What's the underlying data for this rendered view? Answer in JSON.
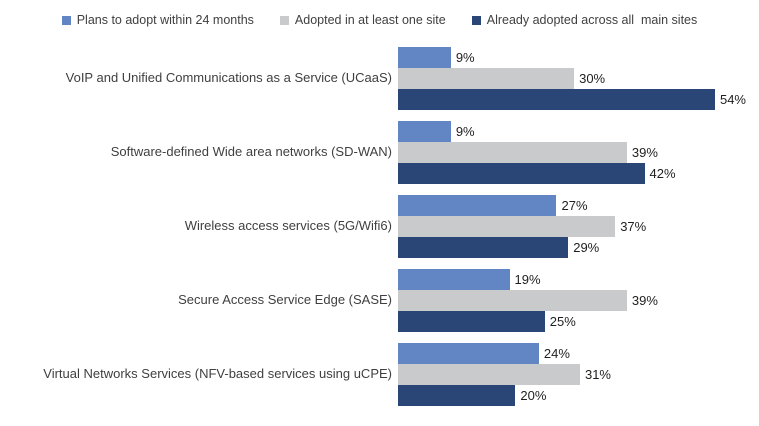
{
  "chart_data": {
    "type": "bar",
    "orientation": "horizontal",
    "title": "",
    "xlabel": "",
    "ylabel": "",
    "xlim": [
      0,
      60
    ],
    "grid": false,
    "legend_position": "top",
    "value_labels": "outside-end",
    "categories": [
      "VoIP and Unified Communications as a Service (UCaaS)",
      "Software-defined Wide area networks (SD-WAN)",
      "Wireless access services (5G/Wifi6)",
      "Secure Access Service Edge (SASE)",
      "Virtual Networks Services (NFV-based services using uCPE)"
    ],
    "series": [
      {
        "name": "Plans to adopt within 24 months",
        "color": "#6286C3",
        "values": [
          9,
          9,
          27,
          19,
          24
        ],
        "labels": [
          "9%",
          "9%",
          "27%",
          "19%",
          "24%"
        ]
      },
      {
        "name": "Adopted in at least one site",
        "color": "#C9CACC",
        "values": [
          30,
          39,
          37,
          39,
          31
        ],
        "labels": [
          "30%",
          "39%",
          "37%",
          "39%",
          "31%"
        ]
      },
      {
        "name": "Already adopted across all  main sites",
        "color": "#2A4676",
        "values": [
          54,
          42,
          29,
          25,
          20
        ],
        "labels": [
          "54%",
          "42%",
          "29%",
          "25%",
          "20%"
        ]
      }
    ]
  },
  "colors": {
    "background": "#ffffff",
    "category_label": "#3f3f3f",
    "value_label": "#1f1f1f",
    "legend_label": "#404040"
  }
}
